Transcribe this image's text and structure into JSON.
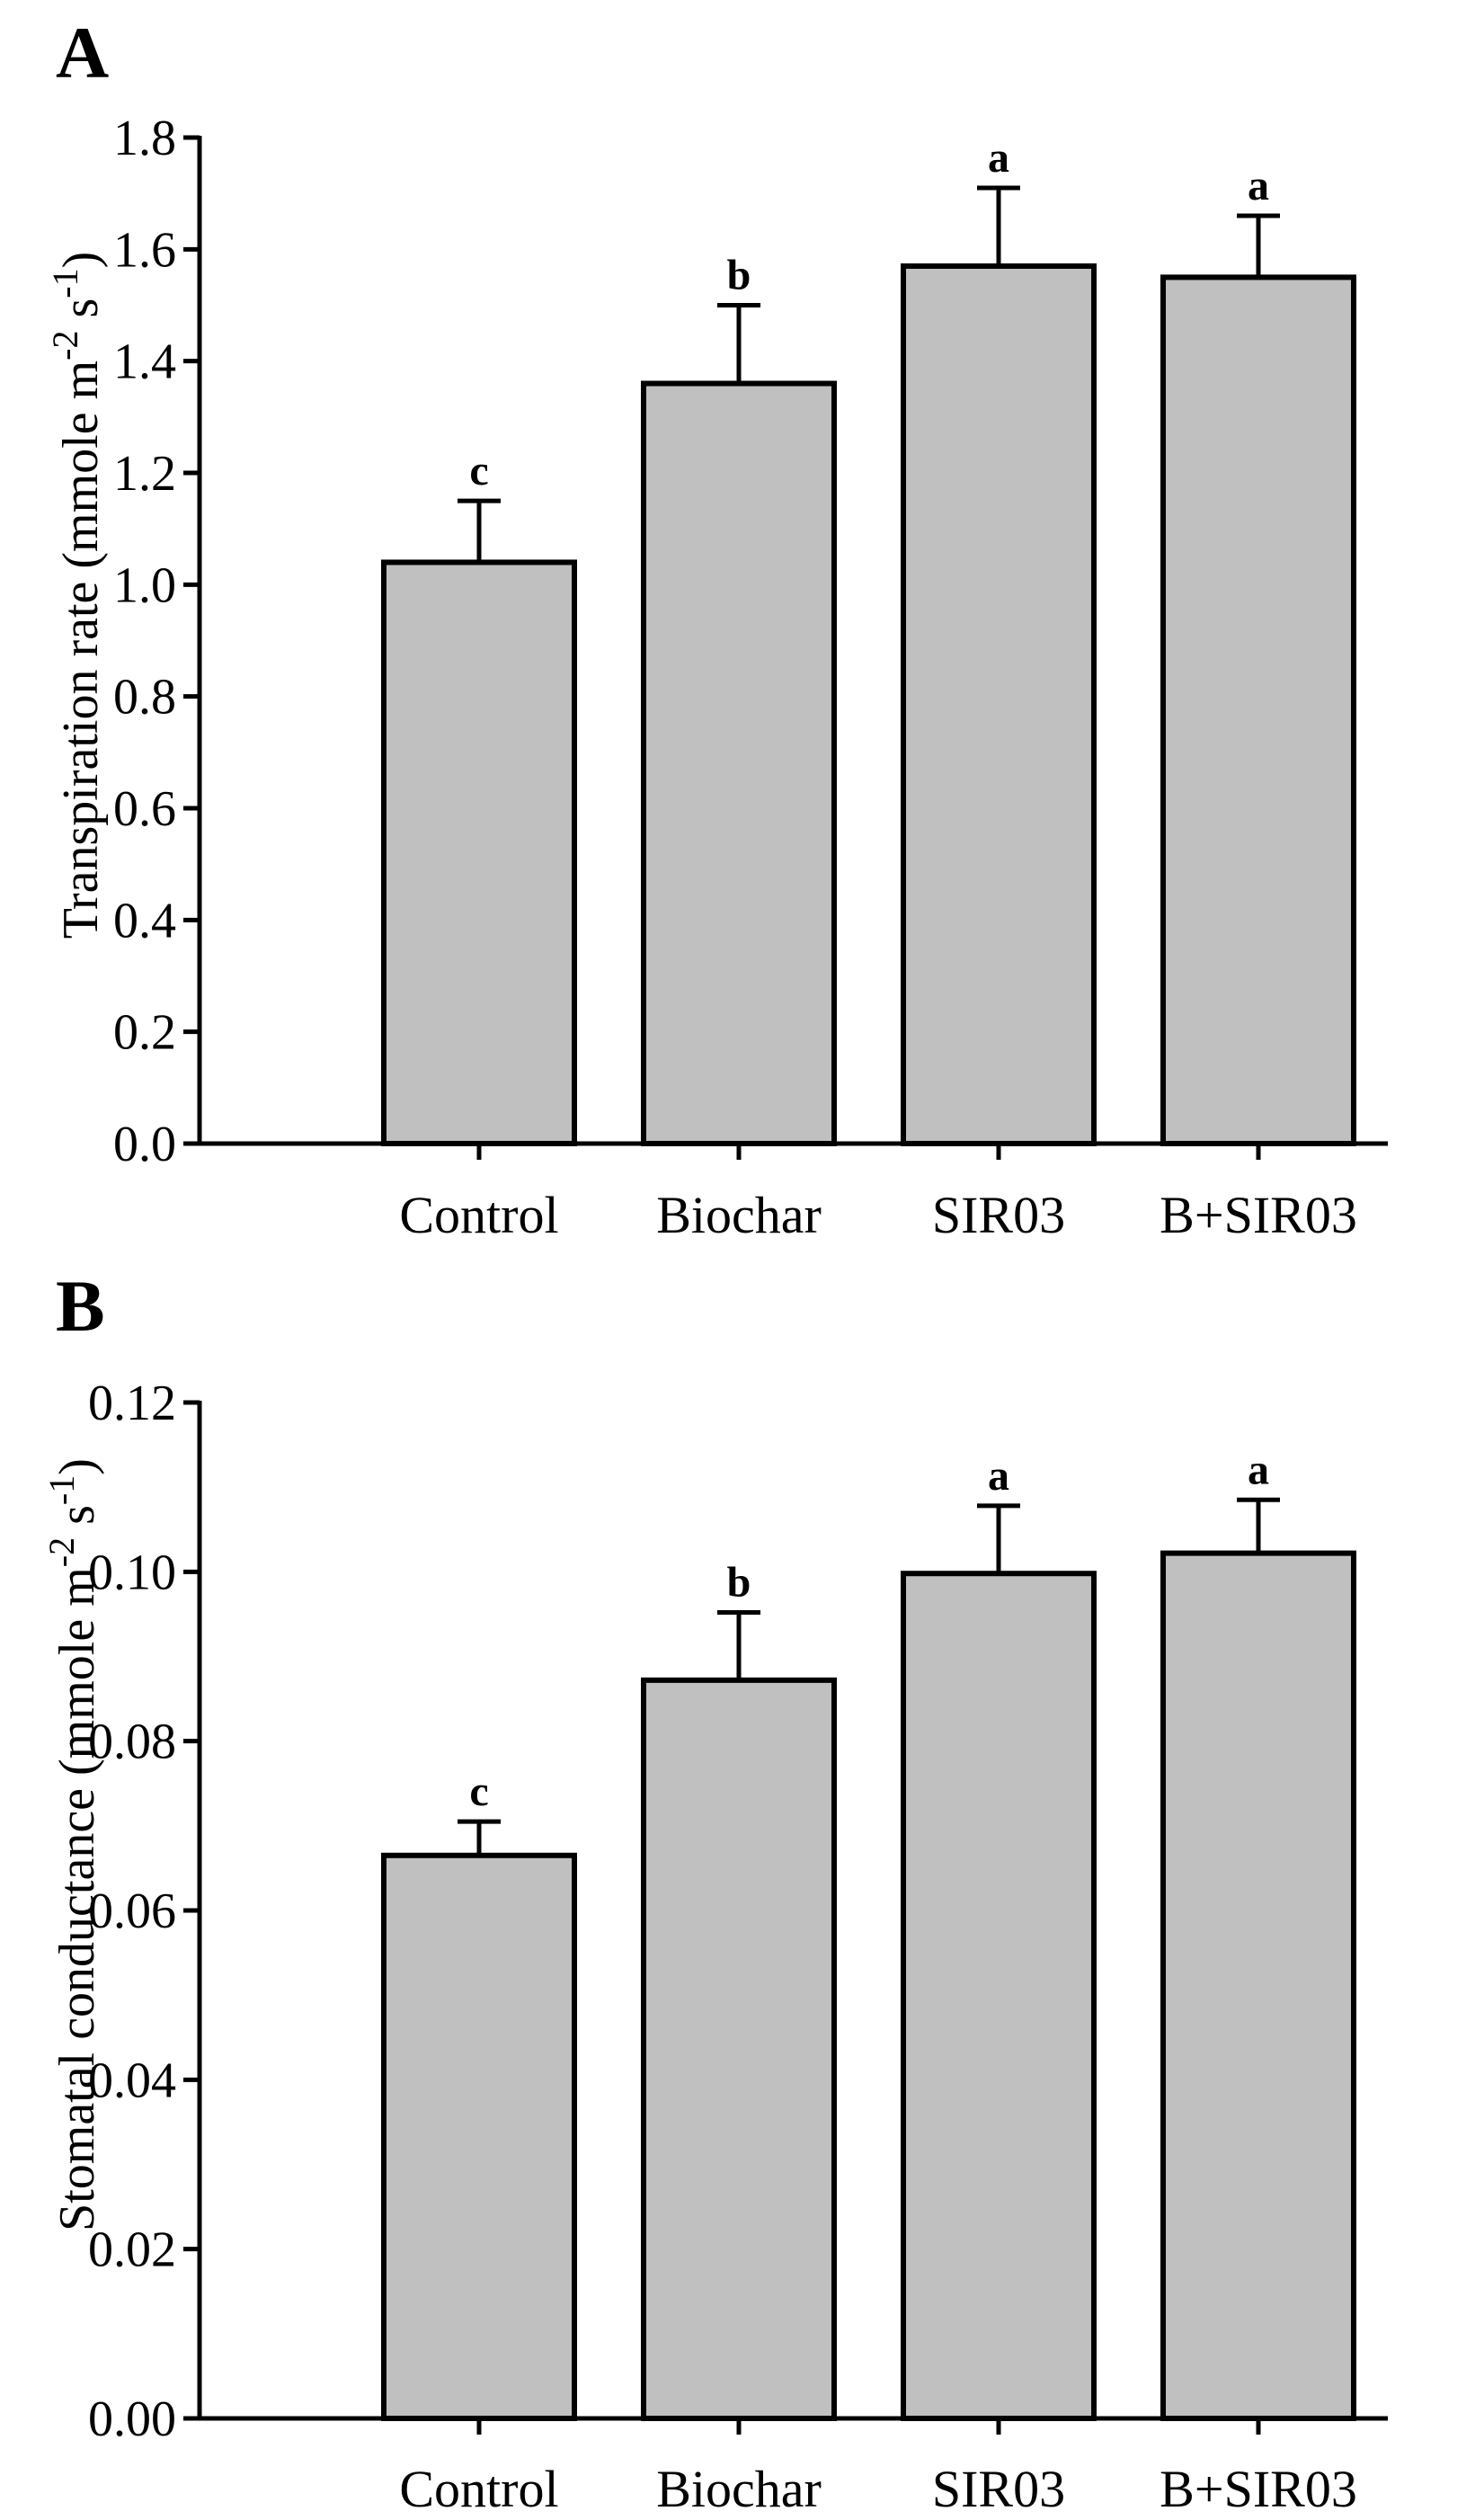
{
  "colors": {
    "bar_fill": "#c0c0c0",
    "stroke": "#000000",
    "background": "#ffffff"
  },
  "chart_data": [
    {
      "type": "bar",
      "panel_label": "A",
      "categories": [
        "Control",
        "Biochar",
        "SIR03",
        "B+SIR03"
      ],
      "values": [
        1.04,
        1.36,
        1.57,
        1.55
      ],
      "errors": [
        0.11,
        0.14,
        0.14,
        0.11
      ],
      "significance": [
        "c",
        "b",
        "a",
        "a"
      ],
      "ylabel": "Transpiration rate (mmole m",
      "ylabel_sup1": "-2",
      "ylabel_mid": " s",
      "ylabel_sup2": "-1",
      "ylabel_end": ")",
      "ylim": [
        0,
        1.8
      ],
      "yticks": [
        0.0,
        0.2,
        0.4,
        0.6,
        0.8,
        1.0,
        1.2,
        1.4,
        1.6,
        1.8
      ],
      "ytick_labels": [
        "0.0",
        "0.2",
        "0.4",
        "0.6",
        "0.8",
        "1.0",
        "1.2",
        "1.4",
        "1.6",
        "1.8"
      ]
    },
    {
      "type": "bar",
      "panel_label": "B",
      "categories": [
        "Control",
        "Biochar",
        "SIR03",
        "B+SIR03"
      ],
      "values": [
        0.0665,
        0.0872,
        0.0998,
        0.1022
      ],
      "errors": [
        0.004,
        0.008,
        0.008,
        0.0063
      ],
      "significance": [
        "c",
        "b",
        "a",
        "a"
      ],
      "ylabel": "Stomatal conductance (mmole m",
      "ylabel_sup1": "-2",
      "ylabel_mid": " s",
      "ylabel_sup2": "-1",
      "ylabel_end": ")",
      "ylim": [
        0,
        0.12
      ],
      "yticks": [
        0.0,
        0.02,
        0.04,
        0.06,
        0.08,
        0.1,
        0.12
      ],
      "ytick_labels": [
        "0.00",
        "0.02",
        "0.04",
        "0.06",
        "0.08",
        "0.10",
        "0.12"
      ]
    }
  ]
}
